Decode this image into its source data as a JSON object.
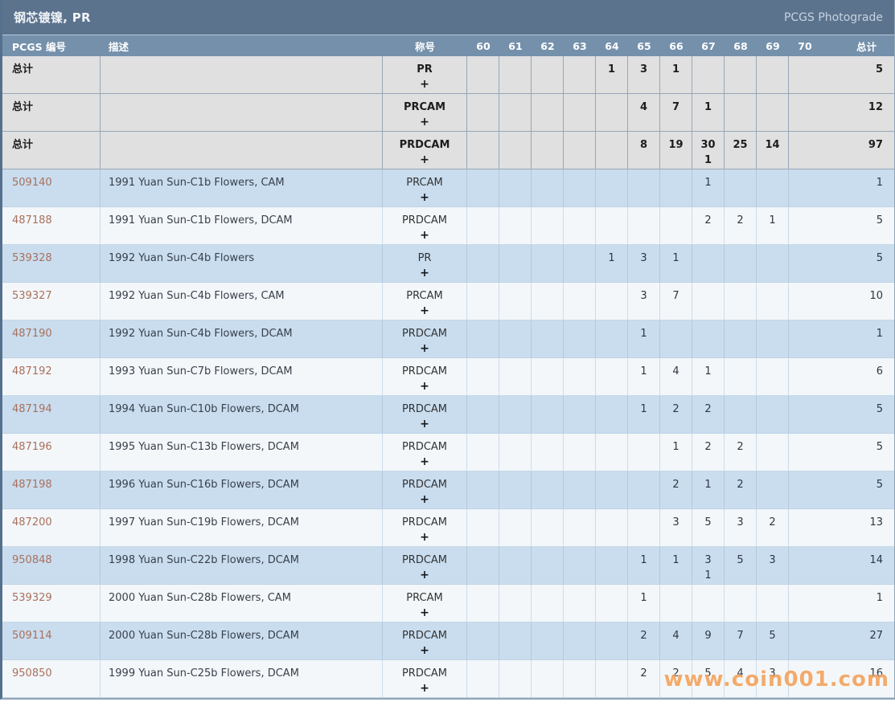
{
  "header": {
    "title": "钢芯镀镍, PR",
    "right_link": "PCGS Photograde"
  },
  "watermark": "www.coin001.com",
  "table": {
    "columns": {
      "id": "PCGS 编号",
      "desc": "描述",
      "desig": "称号",
      "total": "总计"
    },
    "grade_headers": [
      "60",
      "61",
      "62",
      "63",
      "64",
      "65",
      "66",
      "67",
      "68",
      "69",
      "70"
    ],
    "rows": [
      {
        "id": "总计",
        "link": false,
        "kind": "total",
        "desc": "",
        "designation": "PR",
        "plus": "+",
        "grades": [
          "",
          "",
          "",
          "",
          "1",
          "3",
          "1",
          "",
          "",
          "",
          ""
        ],
        "grades_plus": [
          "",
          "",
          "",
          "",
          "",
          "",
          "",
          "",
          "",
          "",
          ""
        ],
        "total": "5"
      },
      {
        "id": "总计",
        "link": false,
        "kind": "total",
        "desc": "",
        "designation": "PRCAM",
        "plus": "+",
        "grades": [
          "",
          "",
          "",
          "",
          "",
          "4",
          "7",
          "1",
          "",
          "",
          ""
        ],
        "grades_plus": [
          "",
          "",
          "",
          "",
          "",
          "",
          "",
          "",
          "",
          "",
          ""
        ],
        "total": "12"
      },
      {
        "id": "总计",
        "link": false,
        "kind": "total",
        "desc": "",
        "designation": "PRDCAM",
        "plus": "+",
        "grades": [
          "",
          "",
          "",
          "",
          "",
          "8",
          "19",
          "30",
          "25",
          "14",
          ""
        ],
        "grades_plus": [
          "",
          "",
          "",
          "",
          "",
          "",
          "",
          "1",
          "",
          "",
          ""
        ],
        "total": "97"
      },
      {
        "id": "509140",
        "link": true,
        "kind": "blue",
        "desc": "1991 Yuan Sun-C1b Flowers, CAM",
        "designation": "PRCAM",
        "plus": "+",
        "grades": [
          "",
          "",
          "",
          "",
          "",
          "",
          "",
          "1",
          "",
          "",
          ""
        ],
        "grades_plus": [
          "",
          "",
          "",
          "",
          "",
          "",
          "",
          "",
          "",
          "",
          ""
        ],
        "total": "1"
      },
      {
        "id": "487188",
        "link": true,
        "kind": "light",
        "desc": "1991 Yuan Sun-C1b Flowers, DCAM",
        "designation": "PRDCAM",
        "plus": "+",
        "grades": [
          "",
          "",
          "",
          "",
          "",
          "",
          "",
          "2",
          "2",
          "1",
          ""
        ],
        "grades_plus": [
          "",
          "",
          "",
          "",
          "",
          "",
          "",
          "",
          "",
          "",
          ""
        ],
        "total": "5"
      },
      {
        "id": "539328",
        "link": true,
        "kind": "blue",
        "desc": "1992 Yuan Sun-C4b Flowers",
        "designation": "PR",
        "plus": "+",
        "grades": [
          "",
          "",
          "",
          "",
          "1",
          "3",
          "1",
          "",
          "",
          "",
          ""
        ],
        "grades_plus": [
          "",
          "",
          "",
          "",
          "",
          "",
          "",
          "",
          "",
          "",
          ""
        ],
        "total": "5"
      },
      {
        "id": "539327",
        "link": true,
        "kind": "light",
        "desc": "1992 Yuan Sun-C4b Flowers, CAM",
        "designation": "PRCAM",
        "plus": "+",
        "grades": [
          "",
          "",
          "",
          "",
          "",
          "3",
          "7",
          "",
          "",
          "",
          ""
        ],
        "grades_plus": [
          "",
          "",
          "",
          "",
          "",
          "",
          "",
          "",
          "",
          "",
          ""
        ],
        "total": "10"
      },
      {
        "id": "487190",
        "link": true,
        "kind": "blue",
        "desc": "1992 Yuan Sun-C4b Flowers, DCAM",
        "designation": "PRDCAM",
        "plus": "+",
        "grades": [
          "",
          "",
          "",
          "",
          "",
          "1",
          "",
          "",
          "",
          "",
          ""
        ],
        "grades_plus": [
          "",
          "",
          "",
          "",
          "",
          "",
          "",
          "",
          "",
          "",
          ""
        ],
        "total": "1"
      },
      {
        "id": "487192",
        "link": true,
        "kind": "light",
        "desc": "1993 Yuan Sun-C7b Flowers, DCAM",
        "designation": "PRDCAM",
        "plus": "+",
        "grades": [
          "",
          "",
          "",
          "",
          "",
          "1",
          "4",
          "1",
          "",
          "",
          ""
        ],
        "grades_plus": [
          "",
          "",
          "",
          "",
          "",
          "",
          "",
          "",
          "",
          "",
          ""
        ],
        "total": "6"
      },
      {
        "id": "487194",
        "link": true,
        "kind": "blue",
        "desc": "1994 Yuan Sun-C10b Flowers, DCAM",
        "designation": "PRDCAM",
        "plus": "+",
        "grades": [
          "",
          "",
          "",
          "",
          "",
          "1",
          "2",
          "2",
          "",
          "",
          ""
        ],
        "grades_plus": [
          "",
          "",
          "",
          "",
          "",
          "",
          "",
          "",
          "",
          "",
          ""
        ],
        "total": "5"
      },
      {
        "id": "487196",
        "link": true,
        "kind": "light",
        "desc": "1995 Yuan Sun-C13b Flowers, DCAM",
        "designation": "PRDCAM",
        "plus": "+",
        "grades": [
          "",
          "",
          "",
          "",
          "",
          "",
          "1",
          "2",
          "2",
          "",
          ""
        ],
        "grades_plus": [
          "",
          "",
          "",
          "",
          "",
          "",
          "",
          "",
          "",
          "",
          ""
        ],
        "total": "5"
      },
      {
        "id": "487198",
        "link": true,
        "kind": "blue",
        "desc": "1996 Yuan Sun-C16b Flowers, DCAM",
        "designation": "PRDCAM",
        "plus": "+",
        "grades": [
          "",
          "",
          "",
          "",
          "",
          "",
          "2",
          "1",
          "2",
          "",
          ""
        ],
        "grades_plus": [
          "",
          "",
          "",
          "",
          "",
          "",
          "",
          "",
          "",
          "",
          ""
        ],
        "total": "5"
      },
      {
        "id": "487200",
        "link": true,
        "kind": "light",
        "desc": "1997 Yuan Sun-C19b Flowers, DCAM",
        "designation": "PRDCAM",
        "plus": "+",
        "grades": [
          "",
          "",
          "",
          "",
          "",
          "",
          "3",
          "5",
          "3",
          "2",
          ""
        ],
        "grades_plus": [
          "",
          "",
          "",
          "",
          "",
          "",
          "",
          "",
          "",
          "",
          ""
        ],
        "total": "13"
      },
      {
        "id": "950848",
        "link": true,
        "kind": "blue",
        "desc": "1998 Yuan Sun-C22b Flowers, DCAM",
        "designation": "PRDCAM",
        "plus": "+",
        "grades": [
          "",
          "",
          "",
          "",
          "",
          "1",
          "1",
          "3",
          "5",
          "3",
          ""
        ],
        "grades_plus": [
          "",
          "",
          "",
          "",
          "",
          "",
          "",
          "1",
          "",
          "",
          ""
        ],
        "total": "14"
      },
      {
        "id": "539329",
        "link": true,
        "kind": "light",
        "desc": "2000 Yuan Sun-C28b Flowers, CAM",
        "designation": "PRCAM",
        "plus": "+",
        "grades": [
          "",
          "",
          "",
          "",
          "",
          "1",
          "",
          "",
          "",
          "",
          ""
        ],
        "grades_plus": [
          "",
          "",
          "",
          "",
          "",
          "",
          "",
          "",
          "",
          "",
          ""
        ],
        "total": "1"
      },
      {
        "id": "509114",
        "link": true,
        "kind": "blue",
        "desc": "2000 Yuan Sun-C28b Flowers, DCAM",
        "designation": "PRDCAM",
        "plus": "+",
        "grades": [
          "",
          "",
          "",
          "",
          "",
          "2",
          "4",
          "9",
          "7",
          "5",
          ""
        ],
        "grades_plus": [
          "",
          "",
          "",
          "",
          "",
          "",
          "",
          "",
          "",
          "",
          ""
        ],
        "total": "27"
      },
      {
        "id": "950850",
        "link": true,
        "kind": "light",
        "desc": "1999 Yuan Sun-C25b Flowers, DCAM",
        "designation": "PRDCAM",
        "plus": "+",
        "grades": [
          "",
          "",
          "",
          "",
          "",
          "2",
          "2",
          "5",
          "4",
          "3",
          ""
        ],
        "grades_plus": [
          "",
          "",
          "",
          "",
          "",
          "",
          "",
          "",
          "",
          "",
          ""
        ],
        "total": "16"
      }
    ]
  }
}
